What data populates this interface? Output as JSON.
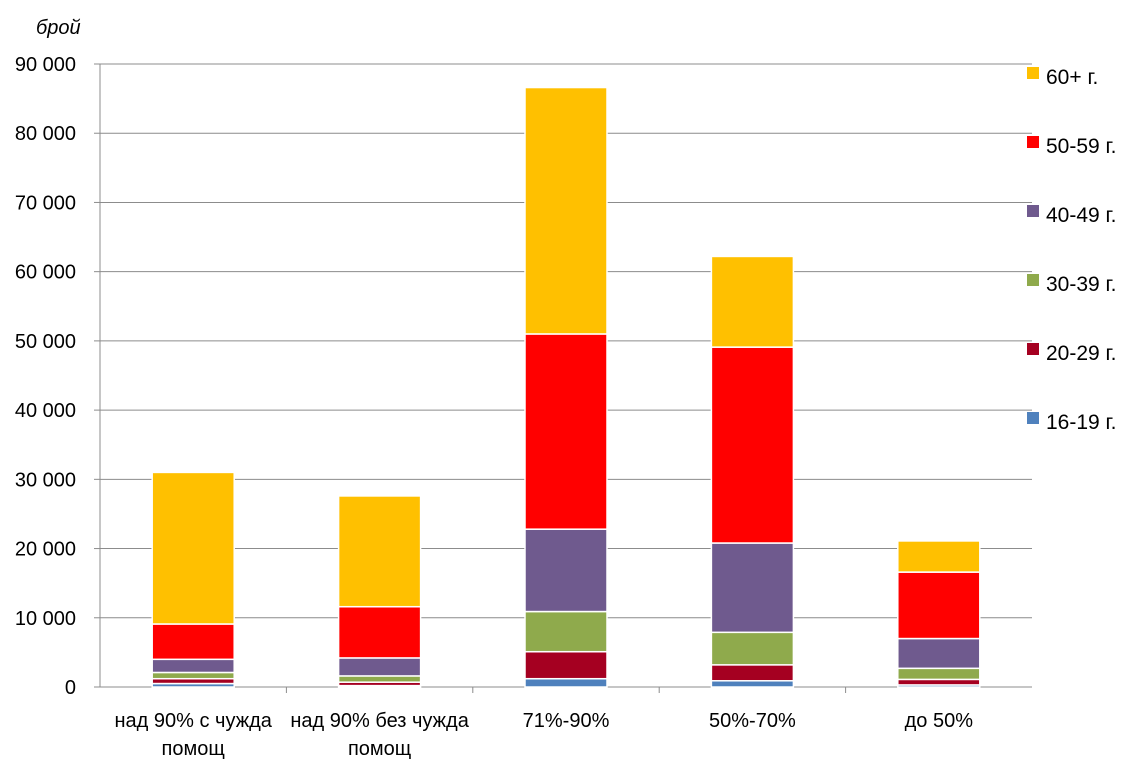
{
  "chart_data": {
    "type": "bar",
    "stacked": true,
    "y_unit_label": "брой",
    "categories": [
      [
        "над 90% с чужда",
        "помощ"
      ],
      [
        "над 90% без чужда",
        "помощ"
      ],
      [
        "71%-90%"
      ],
      [
        "50%-70%"
      ],
      [
        "до 50%"
      ]
    ],
    "series": [
      {
        "name": "16-19 г.",
        "color": "#4f81bd",
        "values": [
          500,
          200,
          1200,
          900,
          300
        ]
      },
      {
        "name": "20-29 г.",
        "color": "#a50021",
        "values": [
          700,
          500,
          3900,
          2300,
          800
        ]
      },
      {
        "name": "30-39 г.",
        "color": "#8faa4c",
        "values": [
          900,
          900,
          5800,
          4700,
          1600
        ]
      },
      {
        "name": "40-49 г.",
        "color": "#6f5a8e",
        "values": [
          1900,
          2600,
          11900,
          12900,
          4300
        ]
      },
      {
        "name": "50-59 г.",
        "color": "#ff0000",
        "values": [
          5100,
          7400,
          28200,
          28300,
          9600
        ]
      },
      {
        "name": "60+ г.",
        "color": "#ffc000",
        "values": [
          21900,
          16000,
          35600,
          13100,
          4500
        ]
      }
    ],
    "ylim": [
      0,
      90000
    ],
    "yticks": [
      "0",
      "10 000",
      "20 000",
      "30 000",
      "40 000",
      "50 000",
      "60 000",
      "70 000",
      "80 000",
      "90 000"
    ],
    "grid": true,
    "legend_position": "right"
  }
}
